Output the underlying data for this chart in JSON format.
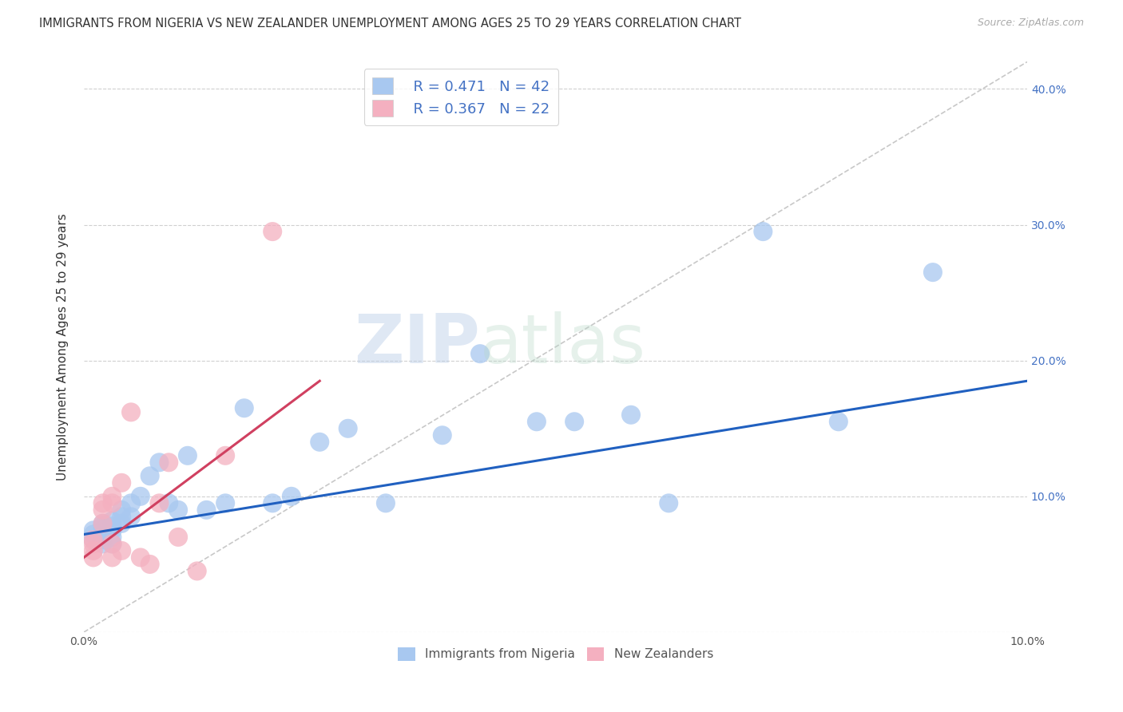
{
  "title": "IMMIGRANTS FROM NIGERIA VS NEW ZEALANDER UNEMPLOYMENT AMONG AGES 25 TO 29 YEARS CORRELATION CHART",
  "source": "Source: ZipAtlas.com",
  "ylabel": "Unemployment Among Ages 25 to 29 years",
  "xlim": [
    0.0,
    0.1
  ],
  "ylim": [
    0.0,
    0.42
  ],
  "blue_color": "#a8c8f0",
  "pink_color": "#f4b0c0",
  "blue_line_color": "#2060c0",
  "pink_line_color": "#d04060",
  "diagonal_color": "#c8c8c8",
  "title_fontsize": 10.5,
  "axis_label_fontsize": 11,
  "legend_fontsize": 13,
  "watermark_zip": "ZIP",
  "watermark_atlas": "atlas",
  "nigeria_x": [
    0.001,
    0.001,
    0.001,
    0.002,
    0.002,
    0.002,
    0.002,
    0.002,
    0.002,
    0.003,
    0.003,
    0.003,
    0.003,
    0.003,
    0.004,
    0.004,
    0.004,
    0.005,
    0.005,
    0.006,
    0.007,
    0.008,
    0.009,
    0.01,
    0.011,
    0.013,
    0.015,
    0.017,
    0.02,
    0.022,
    0.025,
    0.028,
    0.032,
    0.038,
    0.042,
    0.048,
    0.052,
    0.058,
    0.062,
    0.072,
    0.08,
    0.09
  ],
  "nigeria_y": [
    0.075,
    0.072,
    0.068,
    0.08,
    0.078,
    0.075,
    0.07,
    0.068,
    0.065,
    0.082,
    0.078,
    0.075,
    0.07,
    0.065,
    0.09,
    0.085,
    0.08,
    0.095,
    0.085,
    0.1,
    0.115,
    0.125,
    0.095,
    0.09,
    0.13,
    0.09,
    0.095,
    0.165,
    0.095,
    0.1,
    0.14,
    0.15,
    0.095,
    0.145,
    0.205,
    0.155,
    0.155,
    0.16,
    0.095,
    0.295,
    0.155,
    0.265
  ],
  "nz_x": [
    0.001,
    0.001,
    0.001,
    0.001,
    0.002,
    0.002,
    0.002,
    0.003,
    0.003,
    0.003,
    0.003,
    0.004,
    0.004,
    0.005,
    0.006,
    0.007,
    0.008,
    0.009,
    0.01,
    0.012,
    0.015,
    0.02
  ],
  "nz_y": [
    0.068,
    0.065,
    0.06,
    0.055,
    0.095,
    0.09,
    0.08,
    0.1,
    0.095,
    0.065,
    0.055,
    0.11,
    0.06,
    0.162,
    0.055,
    0.05,
    0.095,
    0.125,
    0.07,
    0.045,
    0.13,
    0.295
  ],
  "nig_trend_x0": 0.0,
  "nig_trend_y0": 0.072,
  "nig_trend_x1": 0.1,
  "nig_trend_y1": 0.185,
  "nz_trend_x0": 0.0,
  "nz_trend_y0": 0.055,
  "nz_trend_x1": 0.025,
  "nz_trend_y1": 0.185
}
